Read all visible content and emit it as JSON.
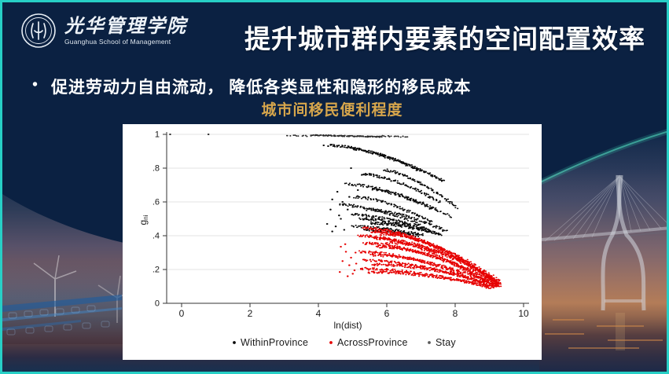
{
  "slide": {
    "logo": {
      "org_cn": "光华管理学院",
      "org_en": "Guanghua School of Management"
    },
    "title": "提升城市群内要素的空间配置效率",
    "bullet_marker": "•",
    "bullet": "促进劳动力自由流动， 降低各类显性和隐形的移民成本",
    "chart_caption": "城市间移民便利程度",
    "colors": {
      "slide_border": "#27cfc6",
      "background_navy": "#0b2142",
      "caption_gold": "#d7a64c",
      "panel_white": "#ffffff"
    }
  },
  "chart_data": {
    "type": "scatter",
    "title": "",
    "xlabel": "ln(dist)",
    "ylabel_main": "g",
    "ylabel_sub": "ni",
    "xlim": [
      -0.5,
      10.3
    ],
    "ylim": [
      0,
      1.02
    ],
    "grid": true,
    "xticks": [
      0,
      2,
      4,
      6,
      8,
      10
    ],
    "xtick_labels": [
      "0",
      "2",
      "4",
      "6",
      "8",
      "10"
    ],
    "ytick_values": [
      0,
      0.2,
      0.4,
      0.6,
      0.8,
      1
    ],
    "ytick_labels": [
      "0",
      ".2",
      ".4",
      ".6",
      ".8",
      "1"
    ],
    "legend_position": "bottom",
    "legend": [
      {
        "name": "WithinProvince",
        "color": "#0a0a0a"
      },
      {
        "name": "AcrossProvince",
        "color": "#e60000"
      },
      {
        "name": "Stay",
        "color": "#5a5a5a"
      }
    ],
    "series": [
      {
        "name": "WithinProvince",
        "color": "#0a0a0a",
        "arcs": [
          [
            4.35,
            7.65,
            0.935,
            0.725,
            170,
            1.6
          ],
          [
            4.9,
            7.0,
            0.915,
            0.78,
            80,
            1.6
          ],
          [
            5.9,
            8.05,
            0.79,
            0.565,
            90,
            1.5
          ],
          [
            5.25,
            7.55,
            0.765,
            0.6,
            100,
            1.6
          ],
          [
            4.8,
            7.85,
            0.705,
            0.515,
            110,
            1.7
          ],
          [
            5.55,
            7.35,
            0.675,
            0.555,
            70,
            1.5
          ],
          [
            5.05,
            7.3,
            0.63,
            0.48,
            85,
            1.6
          ],
          [
            4.6,
            7.0,
            0.585,
            0.465,
            75,
            1.6
          ],
          [
            5.4,
            7.75,
            0.555,
            0.425,
            95,
            1.7
          ],
          [
            4.95,
            7.2,
            0.525,
            0.44,
            85,
            1.6
          ],
          [
            5.2,
            7.6,
            0.5,
            0.405,
            110,
            1.7
          ],
          [
            5.5,
            7.45,
            0.475,
            0.415,
            90,
            1.6
          ],
          [
            5.0,
            7.05,
            0.455,
            0.405,
            80,
            1.6
          ],
          [
            5.35,
            6.95,
            0.435,
            0.4,
            70,
            1.5
          ]
        ],
        "points": [
          [
            4.15,
            0.935
          ],
          [
            4.28,
            0.93
          ],
          [
            4.95,
            0.8
          ],
          [
            4.55,
            0.66
          ],
          [
            4.4,
            0.615
          ],
          [
            4.7,
            0.6
          ],
          [
            4.35,
            0.555
          ],
          [
            4.6,
            0.52
          ],
          [
            4.25,
            0.47
          ],
          [
            4.5,
            0.455
          ],
          [
            4.75,
            0.435
          ],
          [
            4.4,
            0.425
          ],
          [
            4.85,
            0.555
          ],
          [
            5.0,
            0.57
          ],
          [
            4.65,
            0.5
          ],
          [
            5.15,
            0.67
          ],
          [
            4.9,
            0.63
          ]
        ]
      },
      {
        "name": "AcrossProvince",
        "color": "#e60000",
        "arcs": [
          [
            5.3,
            9.3,
            0.445,
            0.115,
            200,
            1.8
          ],
          [
            5.55,
            9.25,
            0.425,
            0.105,
            180,
            1.8
          ],
          [
            5.15,
            9.1,
            0.4,
            0.1,
            170,
            1.8
          ],
          [
            5.6,
            9.35,
            0.385,
            0.12,
            180,
            1.8
          ],
          [
            5.3,
            9.2,
            0.355,
            0.1,
            170,
            1.8
          ],
          [
            5.7,
            9.3,
            0.335,
            0.11,
            170,
            1.8
          ],
          [
            5.2,
            9.0,
            0.305,
            0.095,
            150,
            1.8
          ],
          [
            5.5,
            9.25,
            0.285,
            0.105,
            160,
            1.8
          ],
          [
            5.3,
            9.1,
            0.255,
            0.095,
            150,
            1.8
          ],
          [
            5.6,
            9.3,
            0.23,
            0.1,
            160,
            1.8
          ],
          [
            5.2,
            9.05,
            0.205,
            0.09,
            140,
            1.8
          ],
          [
            5.45,
            9.2,
            0.185,
            0.095,
            150,
            1.8
          ],
          [
            5.8,
            9.3,
            0.41,
            0.13,
            120,
            1.8
          ],
          [
            6.0,
            9.25,
            0.36,
            0.12,
            120,
            1.8
          ]
        ],
        "points": [
          [
            4.65,
            0.335
          ],
          [
            4.8,
            0.305
          ],
          [
            4.7,
            0.25
          ],
          [
            4.9,
            0.225
          ],
          [
            4.62,
            0.185
          ],
          [
            5.0,
            0.175
          ],
          [
            4.78,
            0.35
          ],
          [
            5.05,
            0.195
          ],
          [
            4.95,
            0.27
          ],
          [
            5.1,
            0.235
          ],
          [
            4.85,
            0.16
          ],
          [
            5.08,
            0.3
          ]
        ]
      },
      {
        "name": "Stay",
        "color": "#2b2b2b",
        "arcs": [
          [
            3.8,
            5.85,
            0.995,
            0.985,
            120,
            1.0
          ],
          [
            3.05,
            3.75,
            0.995,
            0.99,
            12,
            1.0
          ],
          [
            5.9,
            6.6,
            0.99,
            0.985,
            18,
            1.0
          ]
        ],
        "points": [
          [
            -0.34,
            1.0
          ],
          [
            0.78,
            1.0
          ]
        ]
      }
    ]
  }
}
